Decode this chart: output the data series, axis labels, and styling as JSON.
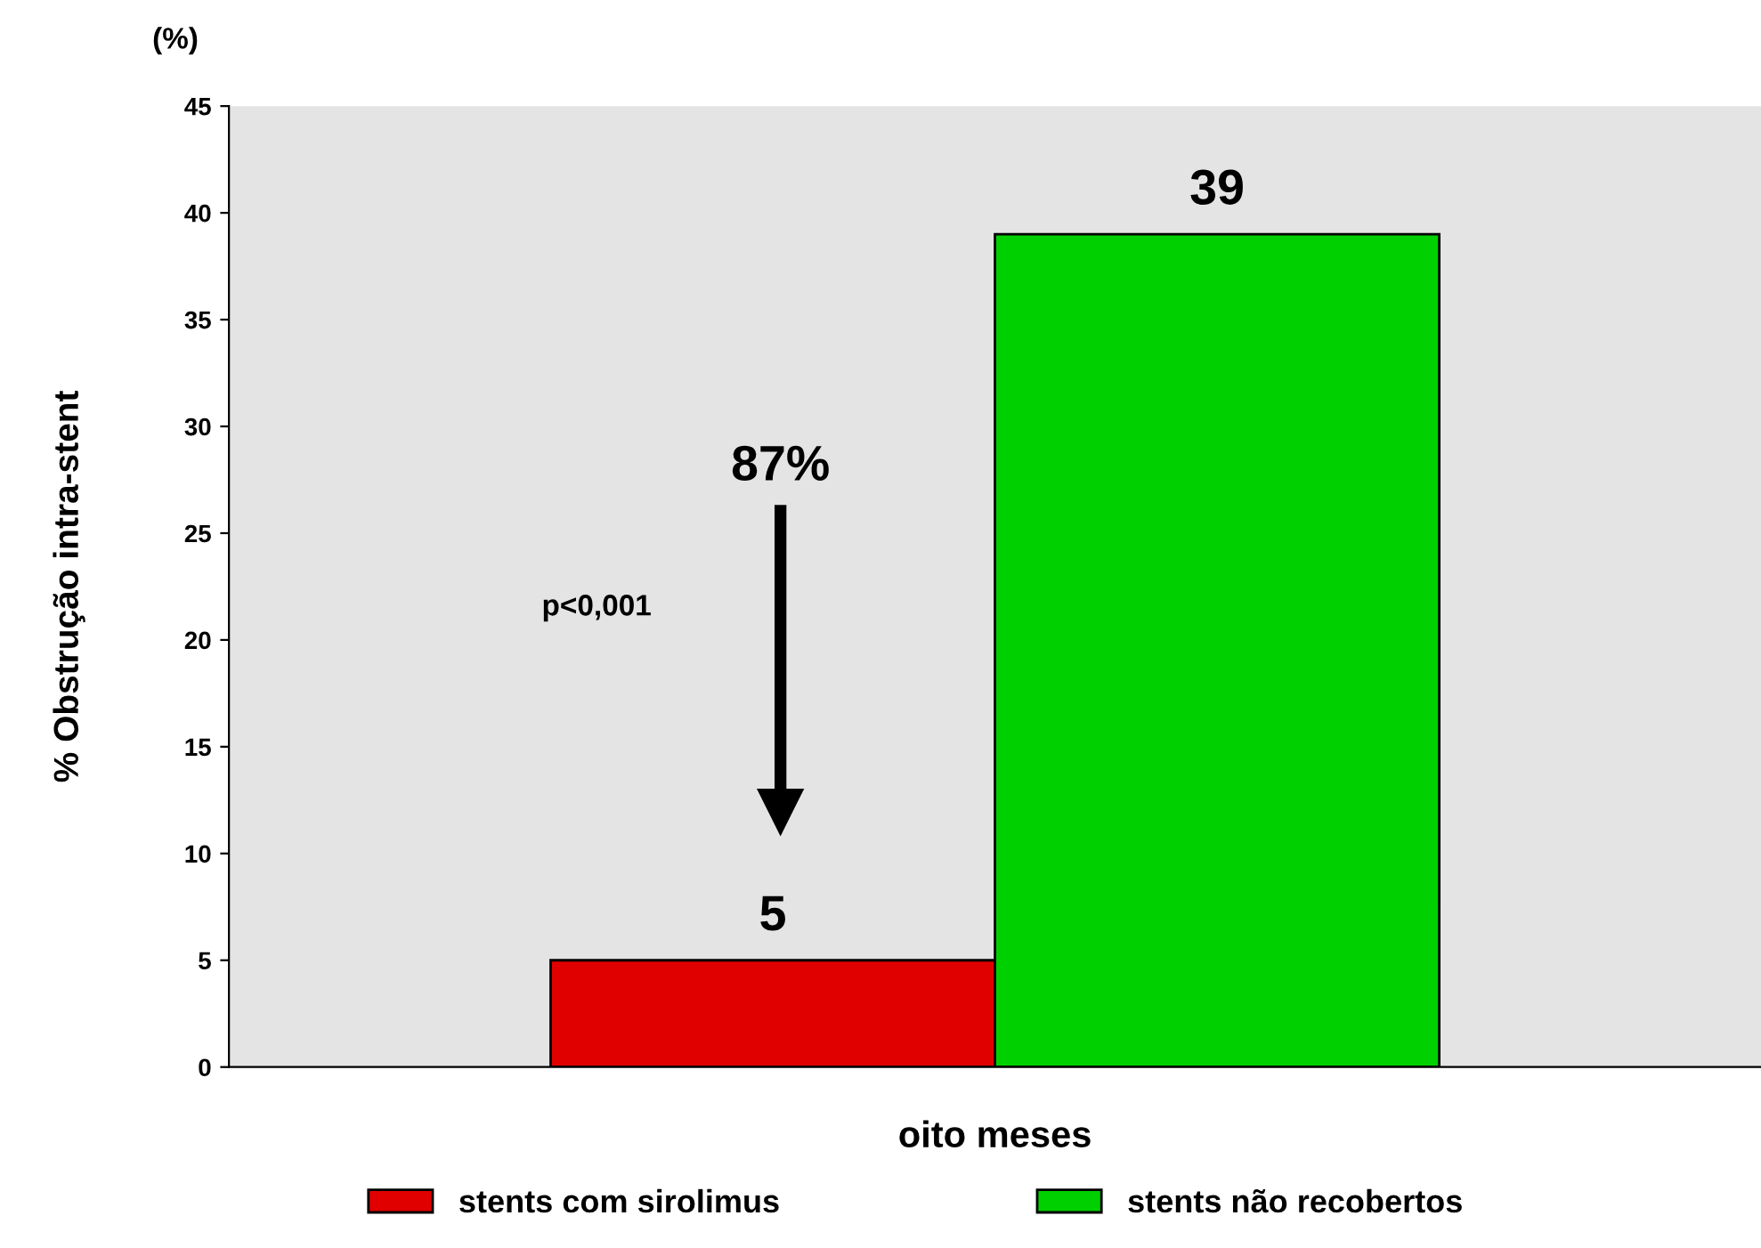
{
  "chart_data": {
    "type": "bar",
    "ylabel": "% Obstrução intra-stent",
    "xlabel": "oito meses",
    "categories": [
      null
    ],
    "series": [
      {
        "name": "stents com sirolimus",
        "color": "#e00000",
        "values": [
          5
        ]
      },
      {
        "name": "stents não recobertos",
        "color": "#00d000",
        "values": [
          39
        ]
      }
    ],
    "ylim": [
      0,
      45
    ],
    "yticks": [
      0,
      5,
      10,
      15,
      20,
      25,
      30,
      35,
      40,
      45
    ],
    "data_labels": true,
    "grid": false,
    "legend": "bottom",
    "annotations": [
      "(%)",
      "87%",
      "p<0,001"
    ]
  }
}
